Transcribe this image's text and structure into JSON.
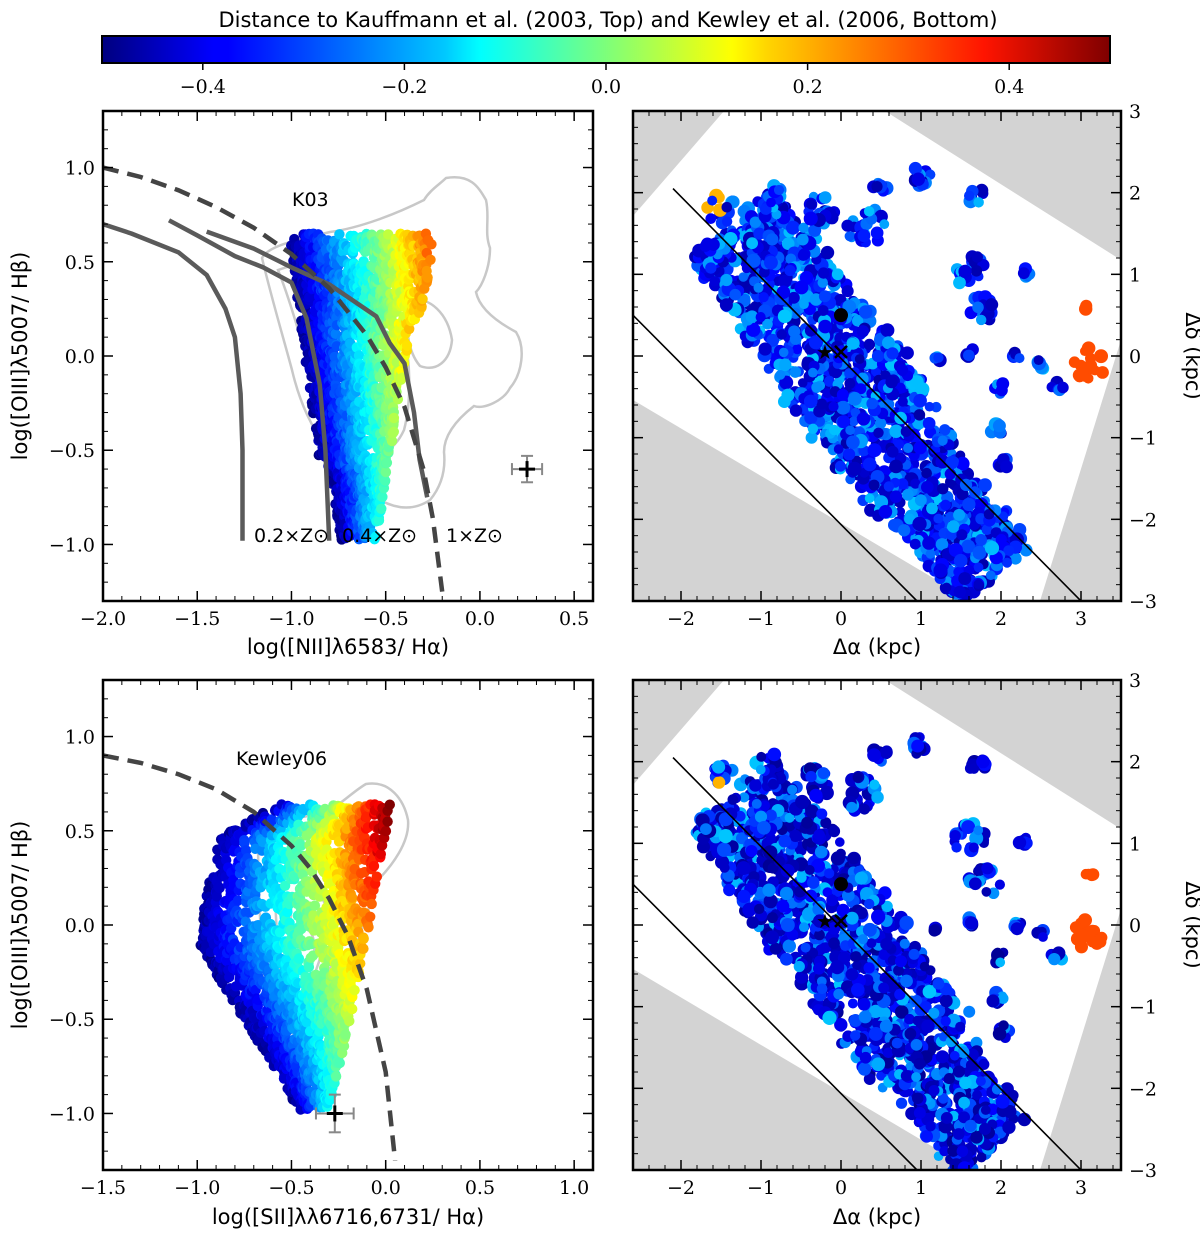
{
  "colorbar": {
    "title": "Distance to Kauffmann et al. (2003, Top) and Kewley et al. (2006, Bottom)",
    "range": [
      -0.5,
      0.5
    ],
    "ticks": [
      -0.4,
      -0.2,
      0.0,
      0.2,
      0.4
    ],
    "tick_labels": [
      "−0.4",
      "−0.2",
      "0.0",
      "0.2",
      "0.4"
    ],
    "colormap": "jet"
  },
  "chart_data": [
    {
      "id": "bpt-nii",
      "type": "scatter",
      "xlabel": "log([NII]λ6583/ Hα)",
      "ylabel": "log([OIII]λ5007/ Hβ)",
      "xlim": [
        -2.0,
        0.6
      ],
      "ylim": [
        -1.3,
        1.3
      ],
      "xticks": [
        -2.0,
        -1.5,
        -1.0,
        -0.5,
        0.0,
        0.5
      ],
      "xtick_labels": [
        "−2.0",
        "−1.5",
        "−1.0",
        "−0.5",
        "0.0",
        "0.5"
      ],
      "yticks": [
        -1.0,
        -0.5,
        0.0,
        0.5,
        1.0
      ],
      "ytick_labels": [
        "−1.0",
        "−0.5",
        "0.0",
        "0.5",
        "1.0"
      ],
      "demarcation": {
        "label": "K03",
        "x": [
          -2.0,
          -1.8,
          -1.6,
          -1.4,
          -1.2,
          -1.0,
          -0.8,
          -0.6,
          -0.5,
          -0.4,
          -0.3,
          -0.25,
          -0.2
        ],
        "y": [
          1.0,
          0.95,
          0.88,
          0.79,
          0.68,
          0.54,
          0.36,
          0.11,
          -0.06,
          -0.27,
          -0.6,
          -0.86,
          -1.25
        ]
      },
      "model_tracks": [
        {
          "label": "0.2×Z⊙",
          "x": [
            -2.0,
            -1.85,
            -1.6,
            -1.45,
            -1.35,
            -1.3,
            -1.27,
            -1.26,
            -1.26
          ],
          "y": [
            0.7,
            0.65,
            0.55,
            0.43,
            0.25,
            0.1,
            -0.2,
            -0.5,
            -0.98
          ]
        },
        {
          "label": "0.4×Z⊙",
          "x": [
            -1.65,
            -1.5,
            -1.3,
            -1.15,
            -1.0,
            -0.92,
            -0.85,
            -0.82,
            -0.8
          ],
          "y": [
            0.72,
            0.64,
            0.53,
            0.47,
            0.39,
            0.2,
            -0.15,
            -0.5,
            -0.98
          ]
        },
        {
          "label": "1×Z⊙",
          "x": [
            -1.45,
            -1.2,
            -1.0,
            -0.8,
            -0.55,
            -0.48,
            -0.4,
            -0.35,
            -0.32,
            -0.28
          ],
          "y": [
            0.66,
            0.57,
            0.47,
            0.38,
            0.21,
            0.07,
            -0.04,
            -0.3,
            -0.55,
            -0.75
          ]
        }
      ],
      "point_cloud": {
        "x_range": [
          -1.05,
          -0.3
        ],
        "y_range": [
          -1.0,
          0.7
        ],
        "count": 1800,
        "color_value_range": [
          -0.5,
          0.3
        ]
      },
      "error_bar": {
        "x": 0.25,
        "y": -0.6,
        "xerr": 0.08,
        "yerr": 0.07
      }
    },
    {
      "id": "map-nii",
      "type": "heatmap",
      "xlabel": "Δα (kpc)",
      "ylabel": "Δδ (kpc)",
      "xlim": [
        -2.6,
        3.5
      ],
      "ylim": [
        -3,
        3
      ],
      "xticks": [
        -2,
        -1,
        0,
        1,
        2,
        3
      ],
      "xtick_labels": [
        "−2",
        "−1",
        "0",
        "1",
        "2",
        "3"
      ],
      "yticks": [
        -3,
        -2,
        -1,
        0,
        1,
        2,
        3
      ],
      "ytick_labels": [
        "−3",
        "−2",
        "−1",
        "0",
        "1",
        "2",
        "3"
      ],
      "markers": {
        "nucleus": [
          0.0,
          0.5
        ],
        "star": [
          -0.2,
          0.05
        ],
        "cross": [
          0.0,
          0.05
        ]
      },
      "slit": [
        [
          -2.1,
          2.05
        ],
        [
          3.0,
          -3.0
        ],
        [
          0.95,
          -3.0
        ],
        [
          -2.6,
          0.5
        ]
      ],
      "value_range": [
        -0.45,
        0.3
      ]
    },
    {
      "id": "bpt-sii",
      "type": "scatter",
      "xlabel": "log([SII]λλ6716,6731/ Hα)",
      "ylabel": "log([OIII]λ5007/ Hβ)",
      "xlim": [
        -1.5,
        1.1
      ],
      "ylim": [
        -1.3,
        1.3
      ],
      "xticks": [
        -1.5,
        -1.0,
        -0.5,
        0.0,
        0.5,
        1.0
      ],
      "xtick_labels": [
        "−1.5",
        "−1.0",
        "−0.5",
        "0.0",
        "0.5",
        "1.0"
      ],
      "yticks": [
        -1.0,
        -0.5,
        0.0,
        0.5,
        1.0
      ],
      "ytick_labels": [
        "−1.0",
        "−0.5",
        "0.0",
        "0.5",
        "1.0"
      ],
      "demarcation": {
        "label": "Kewley06",
        "x": [
          -1.5,
          -1.3,
          -1.1,
          -0.9,
          -0.7,
          -0.5,
          -0.4,
          -0.3,
          -0.2,
          -0.1,
          0.0,
          0.05
        ],
        "y": [
          0.9,
          0.86,
          0.8,
          0.72,
          0.6,
          0.42,
          0.3,
          0.14,
          -0.06,
          -0.34,
          -0.78,
          -1.25
        ]
      },
      "point_cloud": {
        "x_range": [
          -1.05,
          0.05
        ],
        "y_range": [
          -1.0,
          0.65
        ],
        "count": 1800,
        "color_value_range": [
          -0.5,
          0.5
        ]
      },
      "error_bar": {
        "x": -0.27,
        "y": -1.0,
        "xerr": 0.1,
        "yerr": 0.1
      }
    },
    {
      "id": "map-sii",
      "type": "heatmap",
      "xlabel": "Δα (kpc)",
      "ylabel": "Δδ (kpc)",
      "xlim": [
        -2.6,
        3.5
      ],
      "ylim": [
        -3,
        3
      ],
      "xticks": [
        -2,
        -1,
        0,
        1,
        2,
        3
      ],
      "xtick_labels": [
        "−2",
        "−1",
        "0",
        "1",
        "2",
        "3"
      ],
      "yticks": [
        -3,
        -2,
        -1,
        0,
        1,
        2,
        3
      ],
      "ytick_labels": [
        "−3",
        "−2",
        "−1",
        "0",
        "1",
        "2",
        "3"
      ],
      "markers": {
        "nucleus": [
          0.0,
          0.5
        ],
        "star": [
          -0.2,
          0.05
        ],
        "cross": [
          0.0,
          0.05
        ]
      },
      "slit": [
        [
          -2.1,
          2.05
        ],
        [
          3.0,
          -3.0
        ],
        [
          0.95,
          -3.0
        ],
        [
          -2.6,
          0.5
        ]
      ],
      "value_range": [
        -0.5,
        0.3
      ]
    }
  ],
  "annotations": {
    "k03": "K03",
    "kewley06": "Kewley06",
    "metal_02": "0.2×Z⊙",
    "metal_04": "0.4×Z⊙",
    "metal_1": "1×Z⊙"
  }
}
